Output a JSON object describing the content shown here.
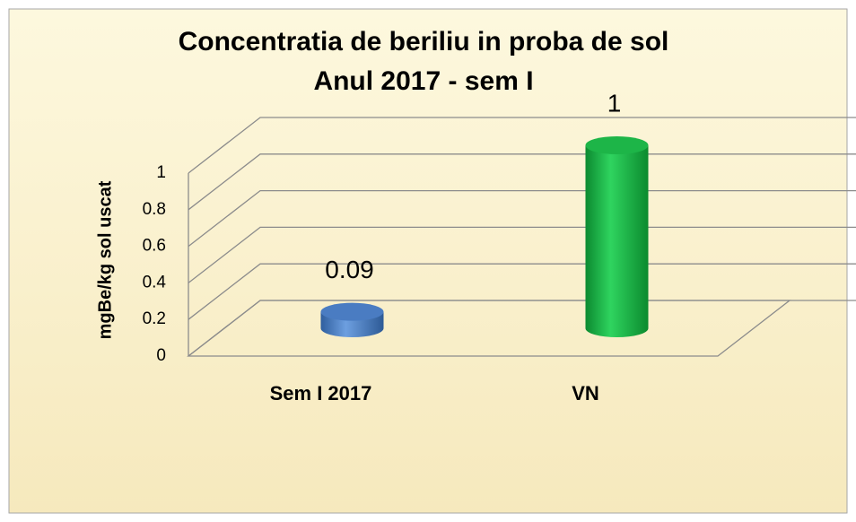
{
  "chart_data": {
    "type": "bar3d",
    "title": "Concentratia de beriliu in proba de sol",
    "subtitle": "Anul 2017 - sem I",
    "y_label": "mgBe/kg sol uscat",
    "categories": [
      "Sem I 2017",
      "VN"
    ],
    "values": [
      0.09,
      1
    ],
    "colors": [
      "#4a7cc2",
      "#1db548"
    ],
    "ylim": [
      0,
      1
    ],
    "yticks": [
      0,
      0.2,
      0.4,
      0.6,
      0.8,
      1
    ],
    "grid": true
  }
}
